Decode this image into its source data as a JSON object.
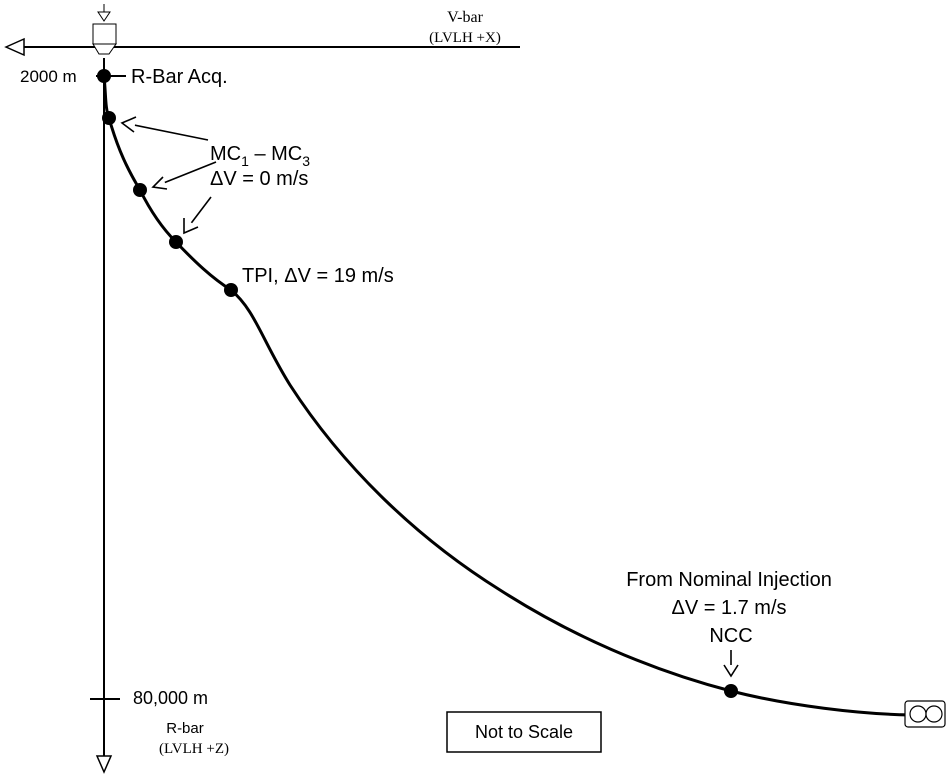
{
  "axes": {
    "vbar": {
      "label": "V-bar",
      "frame": "(LVLH +X)"
    },
    "rbar": {
      "label": "R-bar",
      "frame": "(LVLH +Z)"
    }
  },
  "markers": {
    "start_range": "2000 m",
    "end_range": "80,000 m"
  },
  "annotations": {
    "rbar_acq": "R-Bar Acq.",
    "mc_main": "MC",
    "mc_sub1": "1",
    "mc_dash": " – MC",
    "mc_sub3": "3",
    "mc_dv": "ΔV = 0 m/s",
    "tpi": "TPI, ΔV = 19 m/s",
    "injection_line1": "From Nominal Injection",
    "injection_line2": "ΔV = 1.7 m/s",
    "ncc": "NCC",
    "scale_note": "Not to Scale"
  },
  "icons": {
    "target": "target-station-icon",
    "chaser": "chaser-vehicle-icon"
  },
  "colors": {
    "line": "#000000",
    "background": "#ffffff"
  }
}
